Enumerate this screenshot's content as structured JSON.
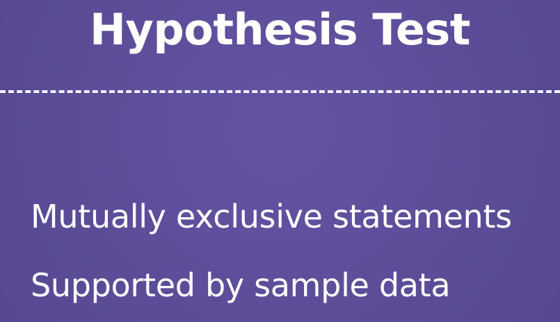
{
  "slide": {
    "title": "Hypothesis Test",
    "bullets": [
      "Mutually exclusive statements",
      "Supported by sample data"
    ]
  },
  "colors": {
    "background": "#5f4f9c",
    "text": "#ffffff",
    "divider": "#ffffff"
  }
}
